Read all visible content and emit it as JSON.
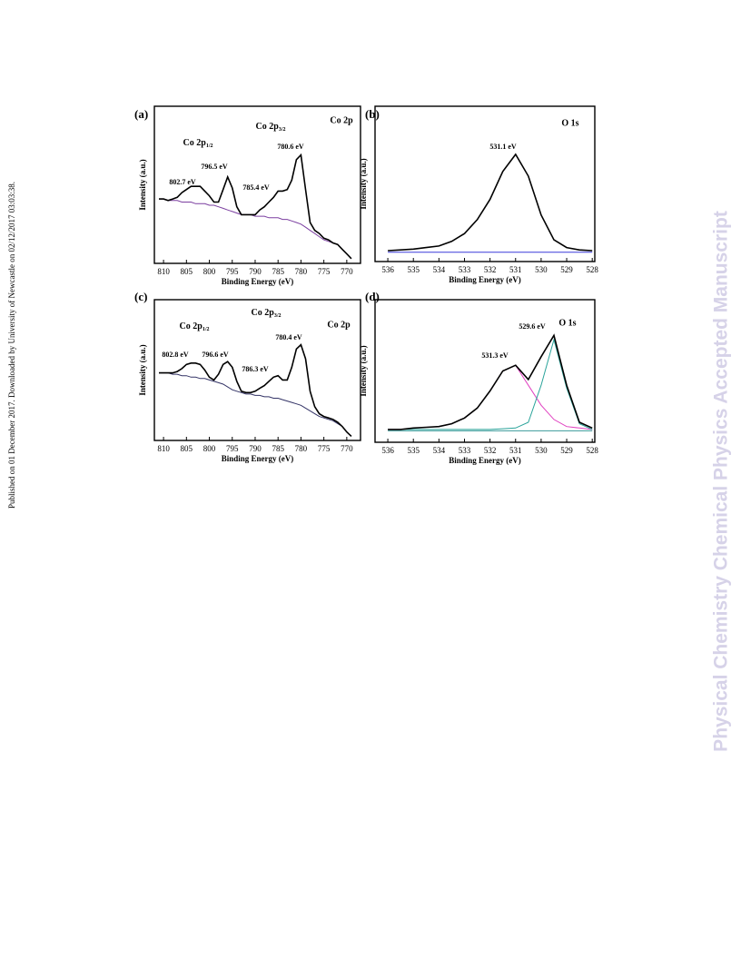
{
  "margin_note": "Published on 01 December 2017. Downloaded by University of Newcastle on 02/12/2017 03:03:38.",
  "watermark": "Physical Chemistry Chemical Physics Accepted Manuscript",
  "chart_data": [
    {
      "type": "line",
      "panel": "(a)",
      "title": "Co 2p",
      "x_label": "Binding Energy (eV)",
      "y_label": "Intensity (a.u.)",
      "x": [
        811,
        810,
        809,
        808,
        807,
        806,
        805,
        804,
        803,
        802,
        801,
        800,
        799,
        798,
        797,
        796,
        795,
        794,
        793,
        792,
        791,
        790,
        789,
        788,
        787,
        786,
        785,
        784,
        783,
        782,
        781,
        780,
        779,
        778,
        777,
        776,
        775,
        774,
        773,
        772,
        771,
        770,
        769
      ],
      "xlim": [
        812,
        767
      ],
      "xticks": [
        810,
        805,
        800,
        795,
        790,
        785,
        780,
        775,
        770
      ],
      "ylim": [
        0,
        100
      ],
      "series": [
        {
          "color": "#7b3fa0",
          "values": [
            41,
            41,
            40,
            40,
            40,
            39,
            39,
            39,
            38,
            38,
            38,
            37,
            37,
            36,
            35,
            34,
            33,
            32,
            31,
            31,
            31,
            30,
            30,
            30,
            29,
            29,
            29,
            28,
            28,
            27,
            26,
            25,
            23,
            21,
            19,
            17,
            15,
            14,
            13,
            12,
            9,
            6,
            3
          ]
        },
        {
          "color": "#000000",
          "values": [
            41,
            41,
            40,
            41,
            42,
            45,
            47,
            49,
            49,
            49,
            46,
            43,
            39,
            39,
            47,
            55,
            48,
            36,
            31,
            31,
            31,
            31,
            34,
            36,
            39,
            42,
            46,
            46,
            47,
            53,
            66,
            69,
            47,
            26,
            21,
            19,
            16,
            15,
            13,
            12,
            9,
            6,
            3
          ]
        }
      ],
      "annotations": [
        {
          "text": "Co 2p",
          "sub": "1/2"
        },
        {
          "text": "Co 2p",
          "sub": "3/2"
        },
        {
          "text": "802.7 eV"
        },
        {
          "text": "796.5 eV"
        },
        {
          "text": "785.4 eV"
        },
        {
          "text": "780.6 eV"
        }
      ]
    },
    {
      "type": "line",
      "panel": "(b)",
      "title": "O 1s",
      "x_label": "Binding Energy (eV)",
      "y_label": "Intensity (a.u.)",
      "x": [
        536,
        535.5,
        535,
        534.5,
        534,
        533.5,
        533,
        532.5,
        532,
        531.5,
        531,
        530.5,
        530,
        529.5,
        529,
        528.5,
        528
      ],
      "xlim": [
        536.5,
        527.9
      ],
      "xticks": [
        536,
        535,
        534,
        533,
        532,
        531,
        530,
        529,
        528
      ],
      "ylim": [
        0,
        100
      ],
      "series": [
        {
          "color": "#3a3adb",
          "values": [
            6,
            6,
            6,
            6,
            6,
            6,
            6,
            6,
            6,
            6,
            6,
            6,
            6,
            6,
            6,
            6,
            6
          ]
        },
        {
          "color": "#000000",
          "values": [
            7,
            7.5,
            8,
            9,
            10,
            13,
            18,
            27,
            40,
            58,
            69,
            55,
            30,
            14,
            9,
            7.5,
            7
          ]
        }
      ],
      "annotations": [
        {
          "text": "531.1 eV"
        }
      ]
    },
    {
      "type": "line",
      "panel": "(c)",
      "title": "Co 2p",
      "x_label": "Binding Energy (eV)",
      "y_label": "Intensity (a.u.)",
      "x": [
        811,
        810,
        809,
        808,
        807,
        806,
        805,
        804,
        803,
        802,
        801,
        800,
        799,
        798,
        797,
        796,
        795,
        794,
        793,
        792,
        791,
        790,
        789,
        788,
        787,
        786,
        785,
        784,
        783,
        782,
        781,
        780,
        779,
        778,
        777,
        776,
        775,
        774,
        773,
        772,
        771,
        770,
        769
      ],
      "xlim": [
        812,
        767
      ],
      "xticks": [
        810,
        805,
        800,
        795,
        790,
        785,
        780,
        775,
        770
      ],
      "ylim": [
        0,
        100
      ],
      "series": [
        {
          "color": "#333366",
          "values": [
            48,
            48,
            48,
            47,
            47,
            46,
            46,
            45,
            45,
            44,
            44,
            43,
            42,
            41,
            40,
            38,
            36,
            35,
            34,
            33,
            33,
            32,
            32,
            31,
            31,
            30,
            30,
            29,
            28,
            27,
            26,
            25,
            23,
            21,
            19,
            17,
            16,
            15,
            14,
            12,
            10,
            6,
            3
          ]
        },
        {
          "color": "#000000",
          "values": [
            48,
            48,
            48,
            48,
            49,
            51,
            54,
            55,
            55,
            54,
            50,
            45,
            43,
            47,
            54,
            56,
            52,
            42,
            35,
            34,
            34,
            35,
            37,
            39,
            42,
            45,
            46,
            43,
            43,
            52,
            65,
            68,
            58,
            35,
            24,
            19,
            17,
            16,
            15,
            13,
            10,
            6,
            3
          ]
        }
      ],
      "annotations": [
        {
          "text": "Co 2p",
          "sub": "1/2"
        },
        {
          "text": "Co 2p",
          "sub": "3/2"
        },
        {
          "text": "802.8 eV"
        },
        {
          "text": "796.6 eV"
        },
        {
          "text": "786.3 eV"
        },
        {
          "text": "780.4 eV"
        }
      ]
    },
    {
      "type": "line",
      "panel": "(d)",
      "title": "O 1s",
      "x_label": "Binding Energy (eV)",
      "y_label": "Intensity (a.u.)",
      "x": [
        536,
        535.5,
        535,
        534.5,
        534,
        533.5,
        533,
        532.5,
        532,
        531.5,
        531,
        530.5,
        530,
        529.5,
        529,
        528.5,
        528
      ],
      "xlim": [
        536.5,
        527.9
      ],
      "xticks": [
        536,
        535,
        534,
        533,
        532,
        531,
        530,
        529,
        528
      ],
      "ylim": [
        0,
        100
      ],
      "series": [
        {
          "color": "#3a9a9a",
          "values": [
            8,
            8,
            8,
            8,
            8,
            8,
            8,
            8,
            8,
            8,
            8,
            8,
            8,
            8,
            8,
            8,
            8
          ]
        },
        {
          "color": "#e040c0",
          "values": [
            9,
            9,
            10,
            10.5,
            11,
            13,
            17,
            24,
            36,
            50,
            54,
            40,
            26,
            16,
            11,
            10,
            9
          ]
        },
        {
          "color": "#2aa39a",
          "values": [
            9,
            9,
            9,
            9,
            9,
            9,
            9,
            9,
            9,
            9.5,
            10,
            14,
            40,
            72,
            38,
            13,
            9
          ]
        },
        {
          "color": "#000000",
          "values": [
            9,
            9,
            10,
            10.5,
            11,
            13,
            17,
            24,
            36,
            50,
            54,
            44,
            60,
            75,
            40,
            14,
            10
          ]
        }
      ],
      "annotations": [
        {
          "text": "531.3 eV"
        },
        {
          "text": "529.6 eV"
        }
      ]
    }
  ]
}
